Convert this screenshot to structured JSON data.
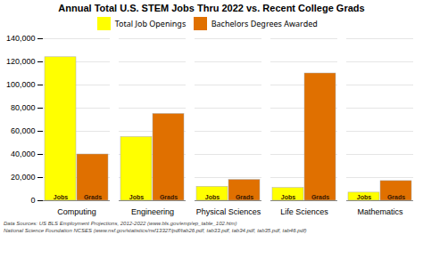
{
  "chart_data": {
    "type": "bar",
    "title": "Annual Total U.S. STEM Jobs Thru 2022 vs. Recent College Grads",
    "categories": [
      "Computing",
      "Engineering",
      "Physical Sciences",
      "Life Sciences",
      "Mathematics"
    ],
    "series": [
      {
        "name": "Total Job Openings",
        "color": "#FFFF00",
        "values": [
          124000,
          55000,
          12000,
          11000,
          7000
        ]
      },
      {
        "name": "Bachelors Degrees Awarded",
        "color": "#E07000",
        "values": [
          40000,
          75000,
          18000,
          110000,
          17000
        ]
      }
    ],
    "annotations": [
      {
        "series": "Total Job Openings",
        "text": "Jobs"
      },
      {
        "series": "Bachelors Degrees Awarded",
        "text": "Grads"
      }
    ],
    "ylim": [
      0,
      140000
    ],
    "yticks": [
      0,
      {
        "value": 20000,
        "label": "20,000"
      },
      {
        "value": 40000,
        "label": "40,000"
      },
      {
        "value": 60000,
        "label": "60,000"
      },
      {
        "value": 80000,
        "label": "80,000"
      },
      {
        "value": 100000,
        "label": "100,000"
      },
      {
        "value": 120000,
        "label": "120,000"
      },
      {
        "value": 140000,
        "label": "140,000"
      }
    ],
    "grid": true,
    "legend": "top",
    "footnotes": [
      "Data Sources: US BLS Employment Projections, 2012-2022 (www.bls.gov/emp/ep_table_102.htm)",
      "National Science Foundation NCSES (www.nsf.gov/statistics/nsf13327/pdf/tab26.pdf, tab33.pdf, tab34.pdf, tab35.pdf, tab46.pdf)"
    ]
  }
}
